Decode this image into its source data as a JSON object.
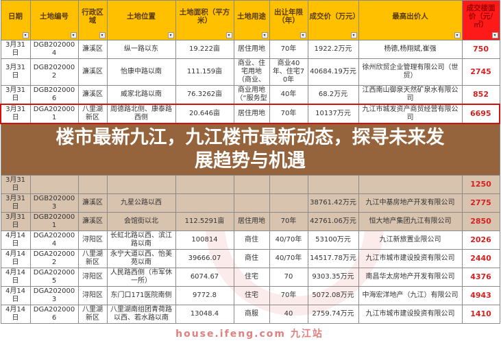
{
  "headers": [
    "日期",
    "土地编号",
    "行政区域",
    "土地位置",
    "土地面积（平方米）",
    "土地用途",
    "出让年限（年）",
    "成交价（万元）",
    "最高出价人",
    "成交楼面价（元/㎡）"
  ],
  "filter_icon": "dropdown-arrow-icon",
  "rows": [
    [
      "3月31日",
      "DGB2020004",
      "濂溪区",
      "纵一路以东",
      "19.222亩",
      "居住用地",
      "70年",
      "1922.2万元",
      "杨德,杨翔斌,崔强",
      "750"
    ],
    [
      "3月31日",
      "DGB2020002",
      "濂溪区",
      "怡康中路以南",
      "111.159亩",
      "商业、住宅用地（商业、",
      "商业40年、住宅70年",
      "40684.19万元",
      "徐州欣贸企业管理有限公司（世贸）",
      "2745"
    ],
    [
      "3月31日",
      "DGB2020006",
      "濂溪区",
      "威家北路以南",
      "76.3262亩",
      "商业用地（“服务型",
      "40年",
      "68.2万元",
      "江西南山御泉天然矿泉水有限公司",
      "852"
    ],
    [
      "3月31日",
      "DGA2020001",
      "八里湖新区",
      "周德路北侧、康泰路西侧",
      "20.646亩",
      "居住用地",
      "70年",
      "10137万元",
      "九江市城发资产商贸经营有限公司",
      "6695"
    ],
    [
      "3月31日",
      "",
      "",
      "",
      "",
      "",
      "",
      "",
      "",
      "1250"
    ],
    [
      "3月31日",
      "DGB2020003",
      "濂溪区",
      "九星公路以西",
      "",
      "",
      "",
      "38761.42万元",
      "九江中基房地产开发有限公司",
      "2775"
    ],
    [
      "3月31日",
      "DGB2020001",
      "濂溪区",
      "会馆街以北",
      "112.5291亩",
      "居住用地",
      "70年",
      "42761.06万元",
      "恒大地产集团九江有限公司",
      "2850"
    ],
    [
      "4月14日",
      "DGA2020004",
      "浔阳区",
      "长虹北路以西、滨江路以南",
      "100814",
      "商住",
      "40/70年",
      "53100万元",
      "九江新旅置业限公司",
      "2026"
    ],
    [
      "4月14日",
      "DGA2020002",
      "八里湖新区",
      "永宁大道以西、怡美苑以南",
      "39666.07",
      "商住",
      "40/70年",
      "14517.78万元",
      "九江市城市建设投资有限公司",
      "2440"
    ],
    [
      "4月14日",
      "DGA2020005",
      "浔阳区",
      "人民路西侧（市军休一所）",
      "6074.67",
      "住宅",
      "70",
      "9303.35万元",
      "南昌华太房地产开发有限公司",
      "4376"
    ],
    [
      "4月14日",
      "DGA2020003",
      "浔阳区",
      "东门口171医院南侧",
      "9772.8",
      "住宅",
      "70年",
      "5072.08万元",
      "中海宏洋地产（九江）有限公司",
      "4943"
    ],
    [
      "4月14日",
      "DGA2020006",
      "八里湖新区",
      "八里湖南组团青荷路以西、若水路以南",
      "13048.4",
      "商服",
      "40",
      "2759.74万元",
      "九江市城市建设投资有限公司",
      "1410"
    ]
  ],
  "overlay_title_line1": "楼市最新九江，九江楼市最新动态，探寻未来发",
  "overlay_title_line2": "展趋势与机遇",
  "watermark": "house.ifeng.com 九江站",
  "colors": {
    "header": "#ffc000",
    "price_header": "#ff1a1a",
    "price_text": "#d42020",
    "highlight_box": "#d01010"
  }
}
